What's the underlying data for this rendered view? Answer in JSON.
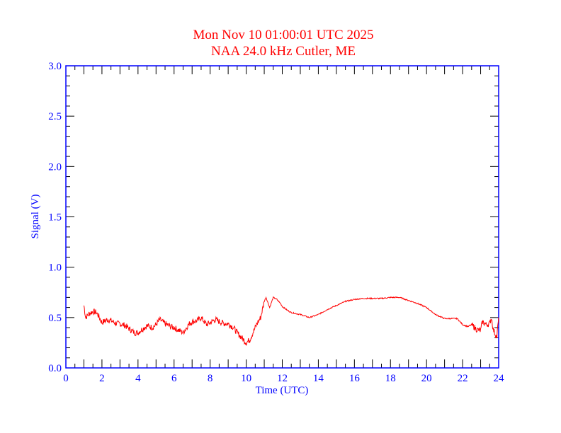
{
  "chart_data": {
    "type": "line",
    "title": "Mon Nov 10 01:00:01 UTC 2025",
    "subtitle": "NAA 24.0 kHz Cutler, ME",
    "xlabel": "Time (UTC)",
    "ylabel": "Signal (V)",
    "xlim": [
      0,
      24
    ],
    "ylim": [
      0,
      3.0
    ],
    "xticks": [
      "0",
      "2",
      "4",
      "6",
      "8",
      "10",
      "12",
      "14",
      "16",
      "18",
      "20",
      "22",
      "24"
    ],
    "yticks": [
      "0.0",
      "0.5",
      "1.0",
      "1.5",
      "2.0",
      "2.5",
      "3.0"
    ],
    "grid": false,
    "series": [
      {
        "name": "NAA",
        "color": "#ff0000",
        "x": [
          1.0,
          1.1,
          1.3,
          1.5,
          1.7,
          1.8,
          2.0,
          2.3,
          2.5,
          2.8,
          3.0,
          3.3,
          3.5,
          3.8,
          4.0,
          4.2,
          4.5,
          4.8,
          5.0,
          5.2,
          5.5,
          5.8,
          6.0,
          6.3,
          6.5,
          6.8,
          7.0,
          7.3,
          7.5,
          7.8,
          8.0,
          8.3,
          8.5,
          8.8,
          9.0,
          9.3,
          9.5,
          9.8,
          10.0,
          10.2,
          10.4,
          10.6,
          10.8,
          11.0,
          11.1,
          11.3,
          11.5,
          11.7,
          11.9,
          12.0,
          12.3,
          12.5,
          13.0,
          13.5,
          14.0,
          14.5,
          15.0,
          15.5,
          16.0,
          16.5,
          17.0,
          17.5,
          18.0,
          18.5,
          19.0,
          19.5,
          20.0,
          20.5,
          21.0,
          21.5,
          21.7,
          22.0,
          22.3,
          22.5,
          22.8,
          23.0,
          23.1,
          23.3,
          23.5,
          23.6,
          23.7,
          23.8,
          23.9,
          24.0
        ],
        "y": [
          0.62,
          0.5,
          0.54,
          0.56,
          0.55,
          0.52,
          0.45,
          0.48,
          0.47,
          0.44,
          0.44,
          0.42,
          0.39,
          0.35,
          0.35,
          0.38,
          0.42,
          0.4,
          0.43,
          0.48,
          0.44,
          0.41,
          0.4,
          0.37,
          0.35,
          0.43,
          0.46,
          0.47,
          0.5,
          0.43,
          0.45,
          0.48,
          0.46,
          0.44,
          0.44,
          0.4,
          0.35,
          0.29,
          0.25,
          0.28,
          0.36,
          0.44,
          0.5,
          0.66,
          0.7,
          0.6,
          0.7,
          0.68,
          0.64,
          0.61,
          0.57,
          0.55,
          0.53,
          0.5,
          0.53,
          0.58,
          0.62,
          0.66,
          0.68,
          0.69,
          0.69,
          0.69,
          0.7,
          0.7,
          0.67,
          0.64,
          0.6,
          0.53,
          0.49,
          0.49,
          0.49,
          0.43,
          0.41,
          0.43,
          0.38,
          0.37,
          0.46,
          0.43,
          0.44,
          0.5,
          0.38,
          0.34,
          0.31,
          0.5
        ]
      }
    ]
  }
}
